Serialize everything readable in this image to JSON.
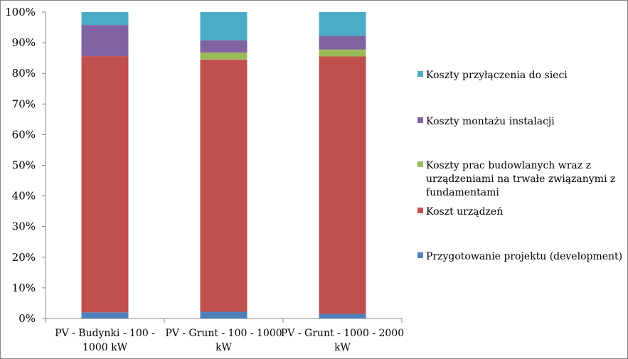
{
  "chart_data": {
    "type": "bar",
    "stacked": true,
    "percent": true,
    "title": "",
    "xlabel": "",
    "ylabel": "",
    "ylim": [
      0,
      100
    ],
    "y_ticks": [
      "0%",
      "10%",
      "20%",
      "30%",
      "40%",
      "50%",
      "60%",
      "70%",
      "80%",
      "90%",
      "100%"
    ],
    "grid": false,
    "legend_position": "right",
    "categories": [
      [
        "PV - Budynki - 100 -",
        "1000 kW"
      ],
      [
        "PV - Grunt - 100 - 1000",
        "kW"
      ],
      [
        "PV - Grunt - 1000 - 2000",
        "kW"
      ]
    ],
    "series": [
      {
        "name": "Przygotowanie projektu (development)",
        "color": "#4f81bd",
        "values": [
          2,
          2.2,
          1.5
        ]
      },
      {
        "name": "Koszt urządzeń",
        "color": "#c0504d",
        "values": [
          83.6,
          82.3,
          84
        ]
      },
      {
        "name": "Koszty prac budowlanych wraz z urządzeniami na trwałe związanymi z fundamentami",
        "color": "#9bbb59",
        "values": [
          0,
          2.3,
          2.3
        ]
      },
      {
        "name": "Koszty montażu instalacji",
        "color": "#8064a2",
        "values": [
          10.2,
          4,
          4.4
        ]
      },
      {
        "name": "Koszty przyłączenia do sieci",
        "color": "#4bacc6",
        "values": [
          4.2,
          9.2,
          7.8
        ]
      }
    ],
    "legend_lines": [
      [
        "Koszty przyłączenia do sieci"
      ],
      [
        "Koszty montażu instalacji"
      ],
      [
        "Koszty prac budowlanych wraz z",
        "urządzeniami na trwałe związanymi z",
        "fundamentami"
      ],
      [
        "Koszt urządzeń"
      ],
      [
        "Przygotowanie projektu (development)"
      ]
    ]
  }
}
